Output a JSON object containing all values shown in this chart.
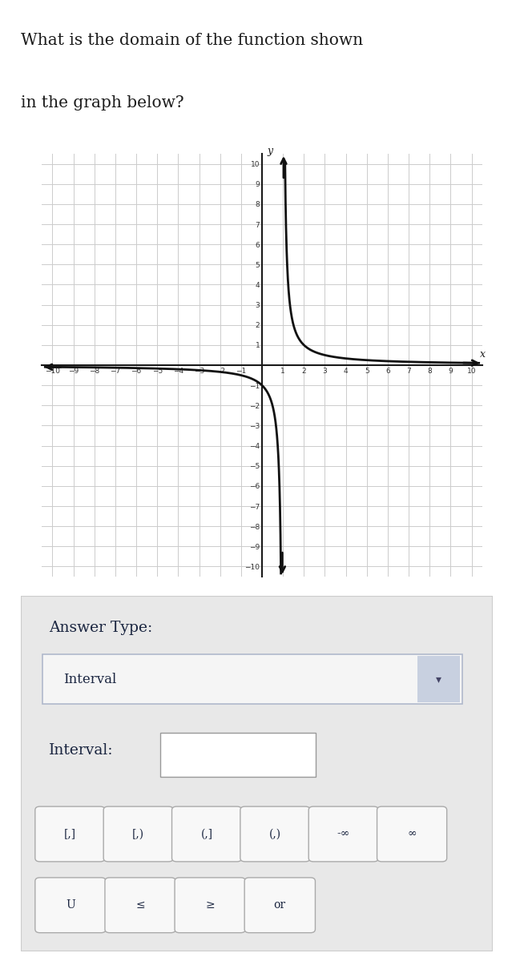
{
  "title_line1": "What is the domain of the function shown",
  "title_line2": "in the graph below?",
  "title_fontsize": 14.5,
  "title_color": "#1a1a1a",
  "xlim": [
    -10.5,
    10.5
  ],
  "ylim": [
    -10.5,
    10.5
  ],
  "grid_color": "#cccccc",
  "axis_color": "#1a1a1a",
  "curve_color": "#111111",
  "curve_linewidth": 2.0,
  "asymptote_x": 1.0,
  "bg_color": "#ffffff",
  "panel_bg": "#e8e8e8",
  "panel_inner_bg": "#f0f0f0",
  "answer_type_label": "Answer Type:",
  "dropdown_label": "Interval",
  "interval_label": "Interval:",
  "buttons_row1": [
    "[,]",
    "[,)",
    "(,]",
    "(,)",
    "-∞",
    "∞"
  ],
  "buttons_row2": [
    "U",
    "≤",
    "≥",
    "or"
  ]
}
